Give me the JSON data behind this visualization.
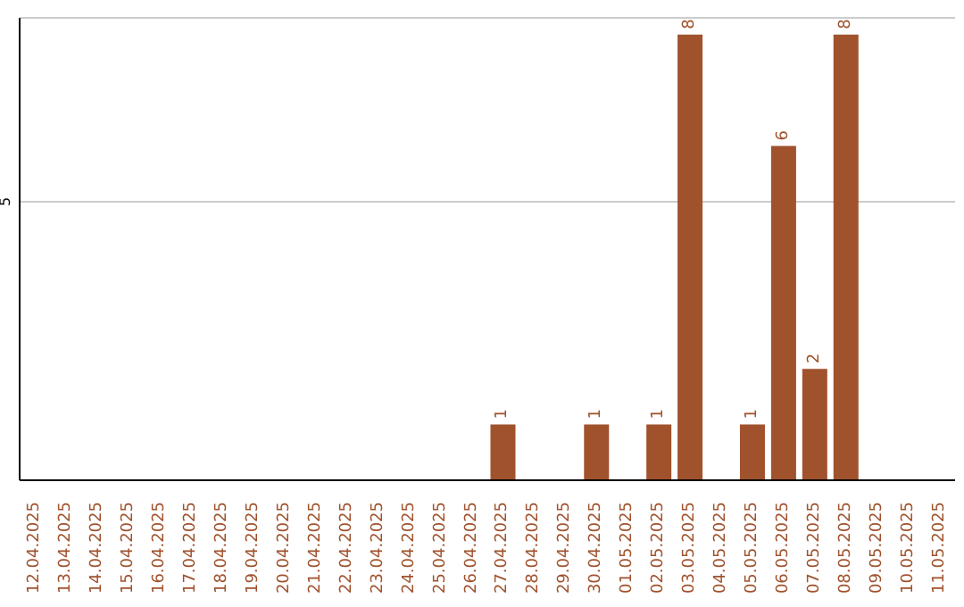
{
  "chart_data": {
    "type": "bar",
    "categories": [
      "12.04.2025",
      "13.04.2025",
      "14.04.2025",
      "15.04.2025",
      "16.04.2025",
      "17.04.2025",
      "18.04.2025",
      "19.04.2025",
      "20.04.2025",
      "21.04.2025",
      "22.04.2025",
      "23.04.2025",
      "24.04.2025",
      "25.04.2025",
      "26.04.2025",
      "27.04.2025",
      "28.04.2025",
      "29.04.2025",
      "30.04.2025",
      "01.05.2025",
      "02.05.2025",
      "03.05.2025",
      "04.05.2025",
      "05.05.2025",
      "06.05.2025",
      "07.05.2025",
      "08.05.2025",
      "09.05.2025",
      "10.05.2025",
      "11.05.2025"
    ],
    "values": [
      null,
      null,
      null,
      null,
      null,
      null,
      null,
      null,
      null,
      null,
      null,
      null,
      null,
      null,
      null,
      1,
      null,
      null,
      1,
      null,
      1,
      8,
      null,
      1,
      6,
      2,
      8,
      null,
      null,
      null
    ],
    "color": "#a0522d",
    "ylim": [
      0,
      8.3
    ],
    "yticks": [
      5
    ],
    "grid": "y",
    "data_labels": true
  }
}
